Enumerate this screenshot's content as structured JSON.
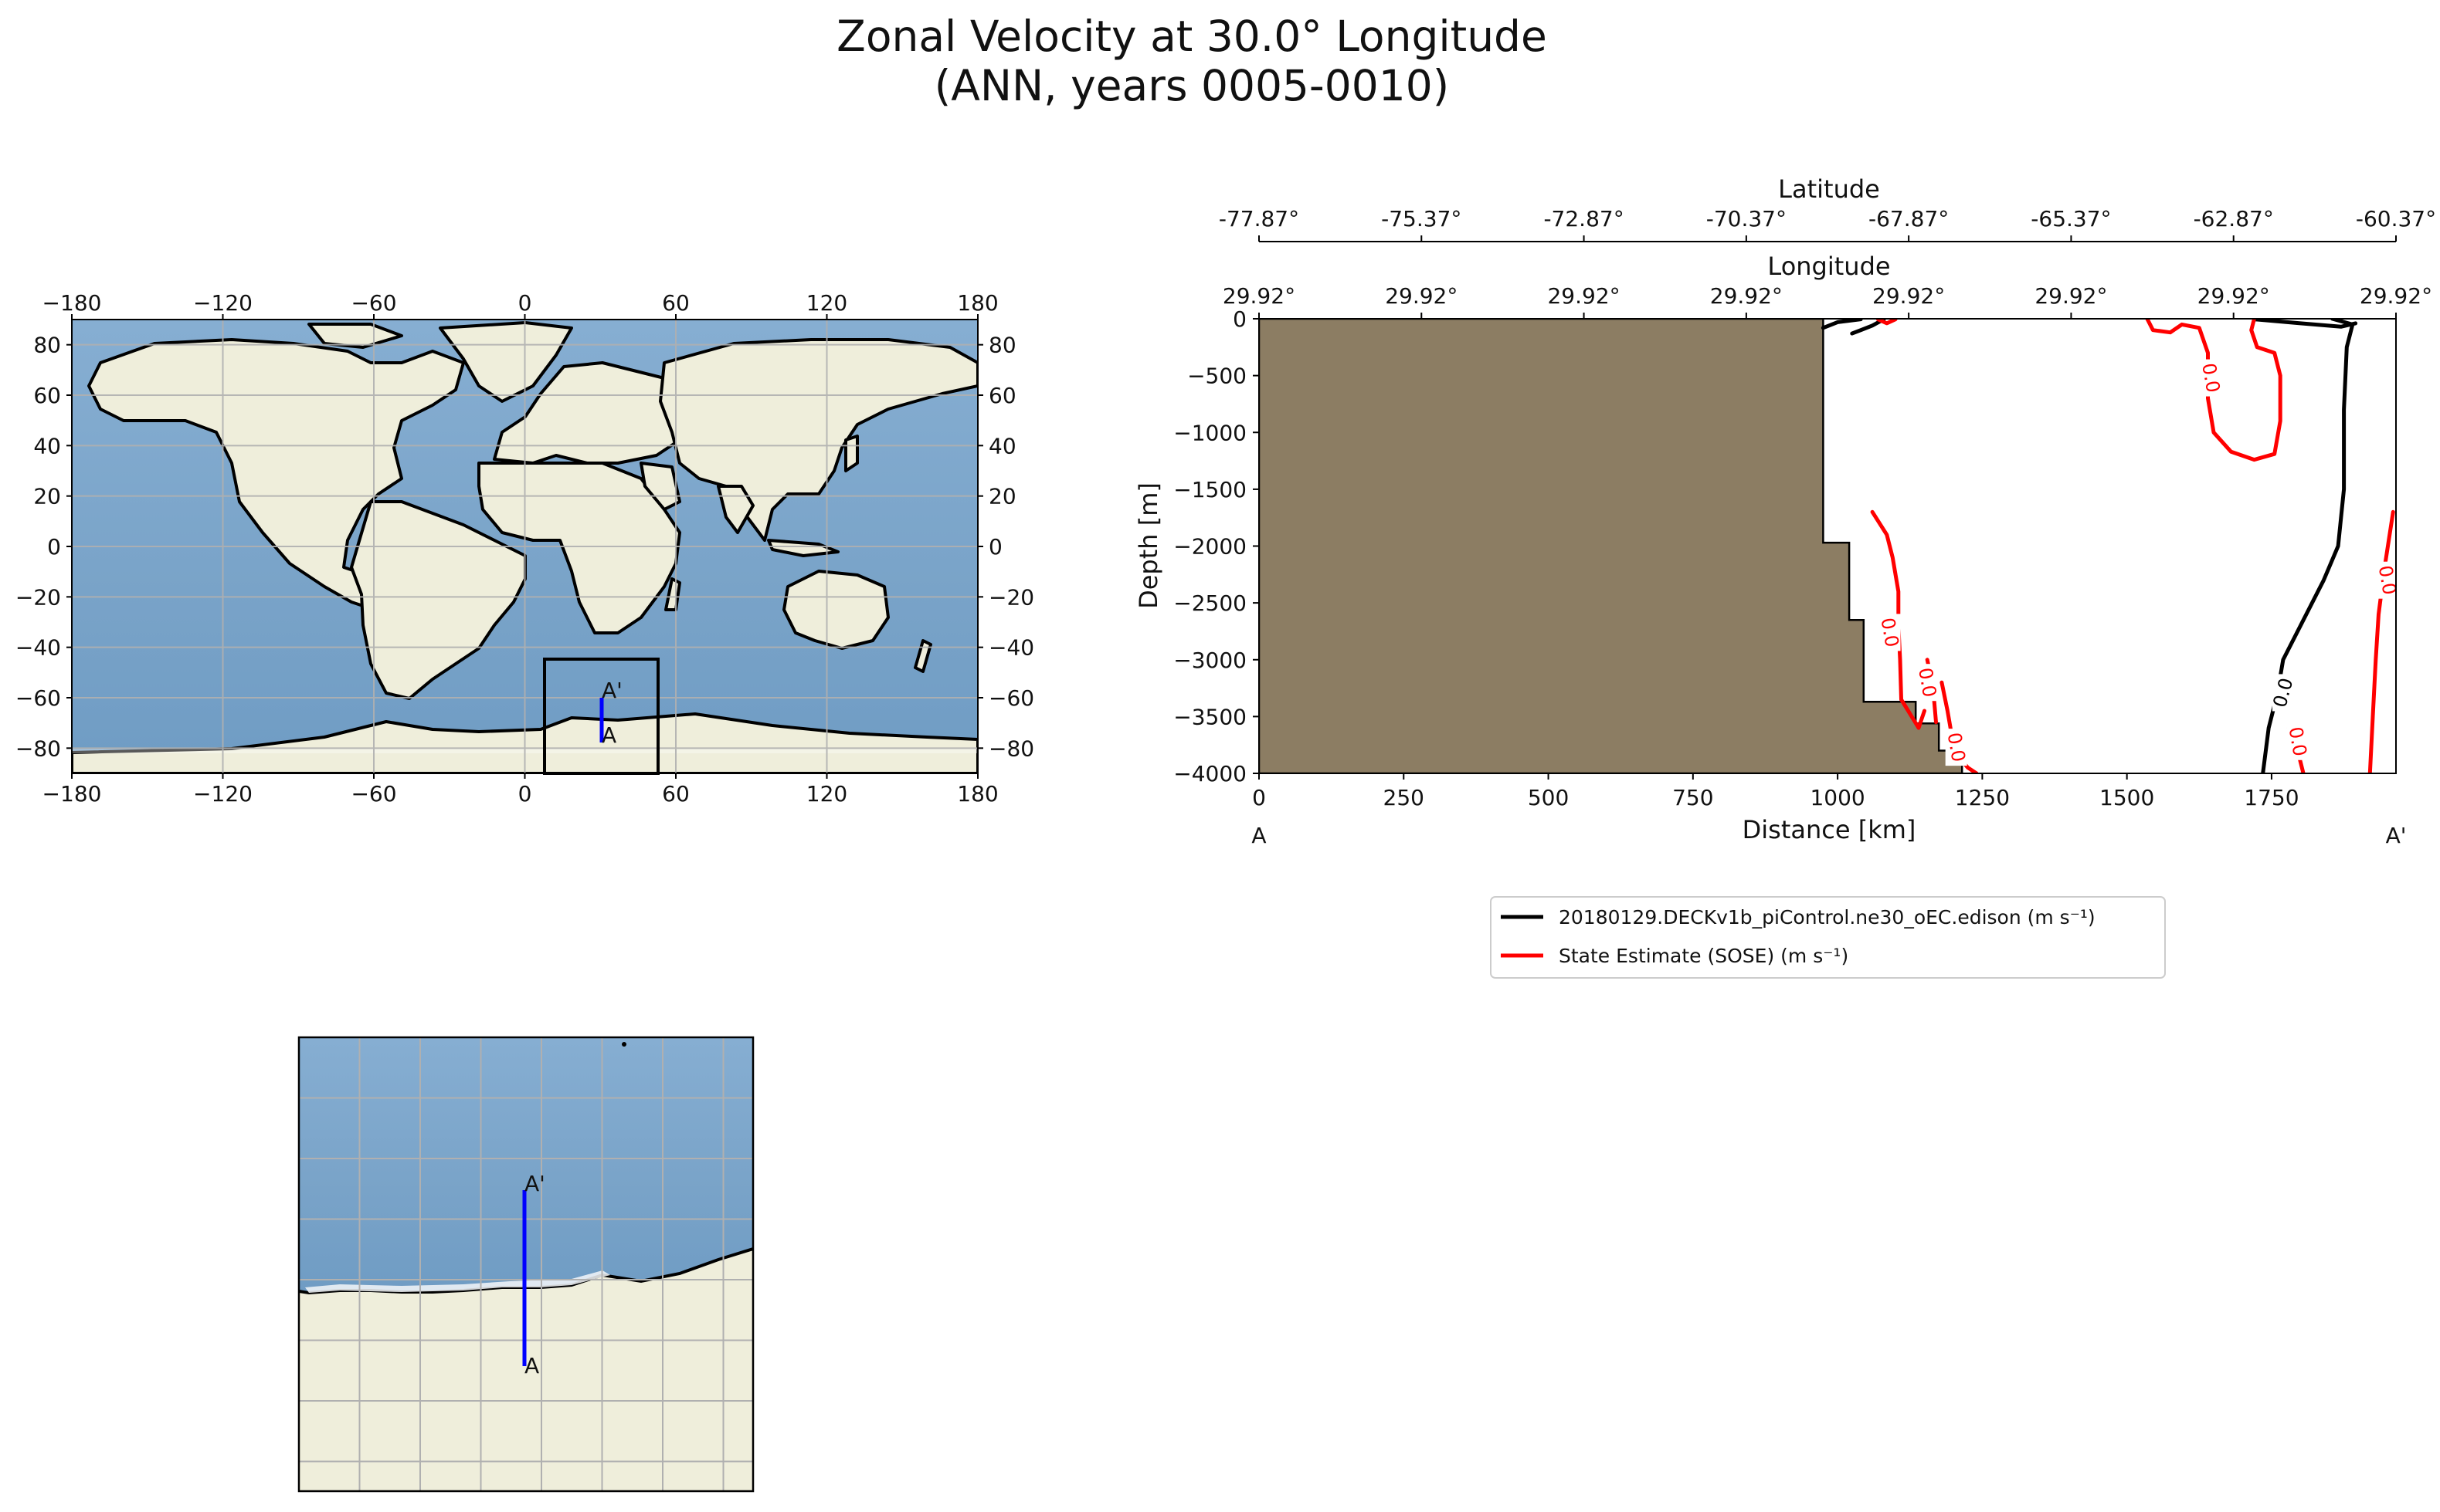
{
  "figure": {
    "title_line1": "Zonal Velocity at 30.0° Longitude",
    "title_line2": "(ANN, years 0005-0010)"
  },
  "colors": {
    "ocean": "#7ea8cc",
    "land": "#efeedb",
    "bathymetry": "#8c7d63",
    "model_line": "#000000",
    "obs_line": "#ff0000",
    "transect": "#0000ff",
    "grid": "#b0b0b0"
  },
  "global_map": {
    "x_ticks": [
      "−180",
      "−120",
      "−60",
      "0",
      "60",
      "120",
      "180"
    ],
    "y_ticks": [
      "80",
      "60",
      "40",
      "20",
      "0",
      "−20",
      "−40",
      "−60",
      "−80"
    ],
    "start_label": "A",
    "end_label": "A'"
  },
  "inset_map": {
    "start_label": "A",
    "end_label": "A'"
  },
  "chart_data": {
    "type": "line",
    "title": "Zonal Velocity at 30.0° Longitude",
    "subtitle": "(ANN, years 0005-0010)",
    "xlabel": "Distance [km]",
    "ylabel": "Depth [m]",
    "xlim": [
      0,
      1965
    ],
    "ylim": [
      -4000,
      0
    ],
    "x_ticks": [
      0,
      250,
      500,
      750,
      1000,
      1250,
      1500,
      1750
    ],
    "y_ticks": [
      0,
      -500,
      -1000,
      -1500,
      -2000,
      -2500,
      -3000,
      -3500,
      -4000
    ],
    "x_start_label": "A",
    "x_end_label": "A'",
    "top_axis_latitude": {
      "label": "Latitude",
      "ticks": [
        "-77.87°",
        "-75.37°",
        "-72.87°",
        "-70.37°",
        "-67.87°",
        "-65.37°",
        "-62.87°",
        "-60.37°"
      ]
    },
    "top_axis_longitude": {
      "label": "Longitude",
      "ticks": [
        "29.92°",
        "29.92°",
        "29.92°",
        "29.92°",
        "29.92°",
        "29.92°",
        "29.92°",
        "29.92°"
      ]
    },
    "bathymetry_outline": [
      [
        0,
        0
      ],
      [
        975,
        0
      ],
      [
        975,
        -1970
      ],
      [
        1020,
        -1970
      ],
      [
        1020,
        -2650
      ],
      [
        1045,
        -2650
      ],
      [
        1045,
        -3370
      ],
      [
        1135,
        -3370
      ],
      [
        1135,
        -3560
      ],
      [
        1175,
        -3560
      ],
      [
        1175,
        -3800
      ],
      [
        1215,
        -3800
      ],
      [
        1215,
        -4000
      ],
      [
        0,
        -4000
      ]
    ],
    "series": [
      {
        "name": "20180129.DECKv1b_piControl.ne30_oEC.edison (m s⁻¹)",
        "color": "#000000",
        "contour_level": "0.0",
        "contours": [
          [
            [
              1855,
              0
            ],
            [
              1890,
              -50
            ],
            [
              1880,
              -250
            ],
            [
              1875,
              -800
            ],
            [
              1875,
              -1500
            ],
            [
              1865,
              -2000
            ],
            [
              1840,
              -2300
            ],
            [
              1800,
              -2700
            ],
            [
              1770,
              -3000
            ],
            [
              1760,
              -3300
            ],
            [
              1745,
              -3600
            ],
            [
              1735,
              -4000
            ]
          ],
          [
            [
              975,
              -80
            ],
            [
              1000,
              -30
            ],
            [
              1040,
              -5
            ]
          ],
          [
            [
              1025,
              -130
            ],
            [
              1060,
              -60
            ],
            [
              1080,
              -5
            ]
          ],
          [
            [
              1720,
              -5
            ],
            [
              1800,
              -40
            ],
            [
              1870,
              -70
            ],
            [
              1895,
              -40
            ]
          ]
        ],
        "contour_label": {
          "text": "0.0",
          "x": 1770,
          "y": -3290
        }
      },
      {
        "name": "State Estimate (SOSE) (m s⁻¹)",
        "color": "#ff0000",
        "contour_level": "0.0",
        "contours": [
          [
            [
              1535,
              0
            ],
            [
              1545,
              -100
            ],
            [
              1575,
              -120
            ],
            [
              1595,
              -50
            ],
            [
              1625,
              -80
            ],
            [
              1640,
              -300
            ],
            [
              1640,
              -700
            ],
            [
              1650,
              -1000
            ],
            [
              1680,
              -1170
            ],
            [
              1720,
              -1240
            ],
            [
              1755,
              -1190
            ],
            [
              1765,
              -900
            ],
            [
              1765,
              -500
            ],
            [
              1755,
              -300
            ],
            [
              1725,
              -250
            ],
            [
              1715,
              -100
            ],
            [
              1720,
              0
            ]
          ],
          [
            [
              1060,
              -1700
            ],
            [
              1085,
              -1900
            ],
            [
              1095,
              -2100
            ],
            [
              1105,
              -2400
            ],
            [
              1105,
              -2700
            ],
            [
              1108,
              -3000
            ],
            [
              1110,
              -3350
            ],
            [
              1140,
              -3600
            ],
            [
              1150,
              -3450
            ]
          ],
          [
            [
              1155,
              -3000
            ],
            [
              1165,
              -3250
            ],
            [
              1170,
              -3550
            ]
          ],
          [
            [
              1180,
              -3200
            ],
            [
              1190,
              -3450
            ],
            [
              1195,
              -3600
            ],
            [
              1200,
              -3800
            ],
            [
              1225,
              -3950
            ],
            [
              1240,
              -4000
            ]
          ],
          [
            [
              1780,
              -3600
            ],
            [
              1795,
              -3800
            ],
            [
              1805,
              -4000
            ]
          ],
          [
            [
              1960,
              -1700
            ],
            [
              1945,
              -2200
            ],
            [
              1935,
              -2600
            ],
            [
              1930,
              -3000
            ],
            [
              1925,
              -3500
            ],
            [
              1920,
              -4000
            ]
          ],
          [
            [
              1070,
              -5
            ],
            [
              1085,
              -40
            ],
            [
              1100,
              -5
            ]
          ]
        ],
        "contour_labels": [
          {
            "text": "0.0",
            "x": 1645,
            "y": -520
          },
          {
            "text": "0.0",
            "x": 1090,
            "y": -2760
          },
          {
            "text": "0.0",
            "x": 1155,
            "y": -3200
          },
          {
            "text": "0.0",
            "x": 1205,
            "y": -3770
          },
          {
            "text": "0.0",
            "x": 1795,
            "y": -3720
          },
          {
            "text": "0.0",
            "x": 1950,
            "y": -2300
          }
        ]
      }
    ]
  },
  "legend": {
    "model_label": "20180129.DECKv1b_piControl.ne30_oEC.edison (m s⁻¹)",
    "obs_label": "State Estimate (SOSE) (m s⁻¹)"
  }
}
